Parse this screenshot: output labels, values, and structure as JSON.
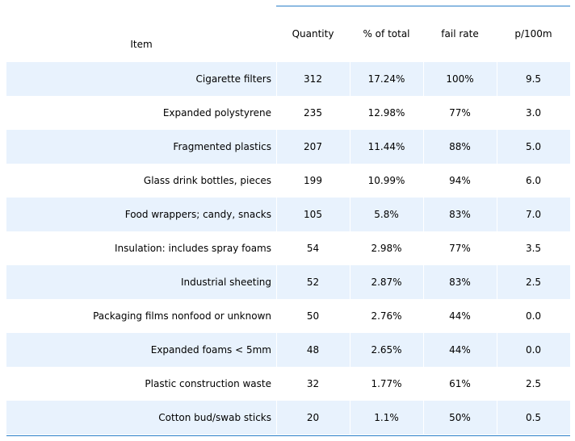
{
  "chart_data": {
    "type": "table",
    "columns": [
      "Item",
      "Quantity",
      "% of total",
      "fail rate",
      "p/100m"
    ],
    "rows": [
      [
        "Cigarette filters",
        "312",
        "17.24%",
        "100%",
        "9.5"
      ],
      [
        "Expanded polystyrene",
        "235",
        "12.98%",
        "77%",
        "3.0"
      ],
      [
        "Fragmented plastics",
        "207",
        "11.44%",
        "88%",
        "5.0"
      ],
      [
        "Glass drink bottles, pieces",
        "199",
        "10.99%",
        "94%",
        "6.0"
      ],
      [
        "Food wrappers; candy, snacks",
        "105",
        "5.8%",
        "83%",
        "7.0"
      ],
      [
        "Insulation: includes spray foams",
        "54",
        "2.98%",
        "77%",
        "3.5"
      ],
      [
        "Industrial sheeting",
        "52",
        "2.87%",
        "83%",
        "2.5"
      ],
      [
        "Packaging films nonfood or unknown",
        "50",
        "2.76%",
        "44%",
        "0.0"
      ],
      [
        "Expanded foams < 5mm",
        "48",
        "2.65%",
        "44%",
        "0.0"
      ],
      [
        "Plastic construction waste",
        "32",
        "1.77%",
        "61%",
        "2.5"
      ],
      [
        "Cotton bud/swab sticks",
        "20",
        "1.1%",
        "50%",
        "0.5"
      ]
    ],
    "stripe_color": "#e8f2fd",
    "rule_color": "#2a7fc9"
  }
}
